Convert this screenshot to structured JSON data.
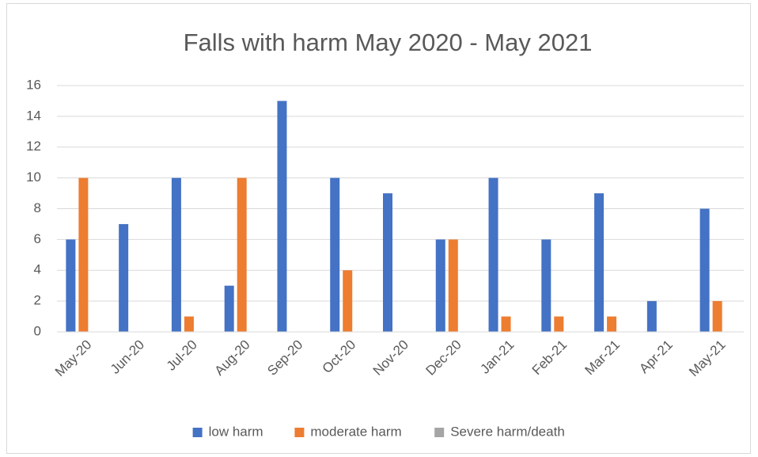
{
  "chart_data": {
    "type": "bar",
    "title": "Falls with harm May 2020 - May 2021",
    "categories": [
      "May-20",
      "Jun-20",
      "Jul-20",
      "Aug-20",
      "Sep-20",
      "Oct-20",
      "Nov-20",
      "Dec-20",
      "Jan-21",
      "Feb-21",
      "Mar-21",
      "Apr-21",
      "May-21"
    ],
    "series": [
      {
        "name": "low harm",
        "color": "#4472c4",
        "values": [
          6,
          7,
          10,
          3,
          15,
          10,
          9,
          6,
          10,
          6,
          9,
          2,
          8
        ]
      },
      {
        "name": "moderate harm",
        "color": "#ed7d31",
        "values": [
          10,
          0,
          1,
          10,
          0,
          4,
          0,
          6,
          1,
          1,
          1,
          0,
          2
        ]
      },
      {
        "name": "Severe harm/death",
        "color": "#a5a5a5",
        "values": [
          0,
          0,
          0,
          0,
          0,
          0,
          0,
          0,
          0,
          0,
          0,
          0,
          0
        ]
      }
    ],
    "ylim": [
      0,
      16
    ],
    "yticks": [
      0,
      2,
      4,
      6,
      8,
      10,
      12,
      14,
      16
    ],
    "grid": true,
    "legend": "bottom"
  }
}
